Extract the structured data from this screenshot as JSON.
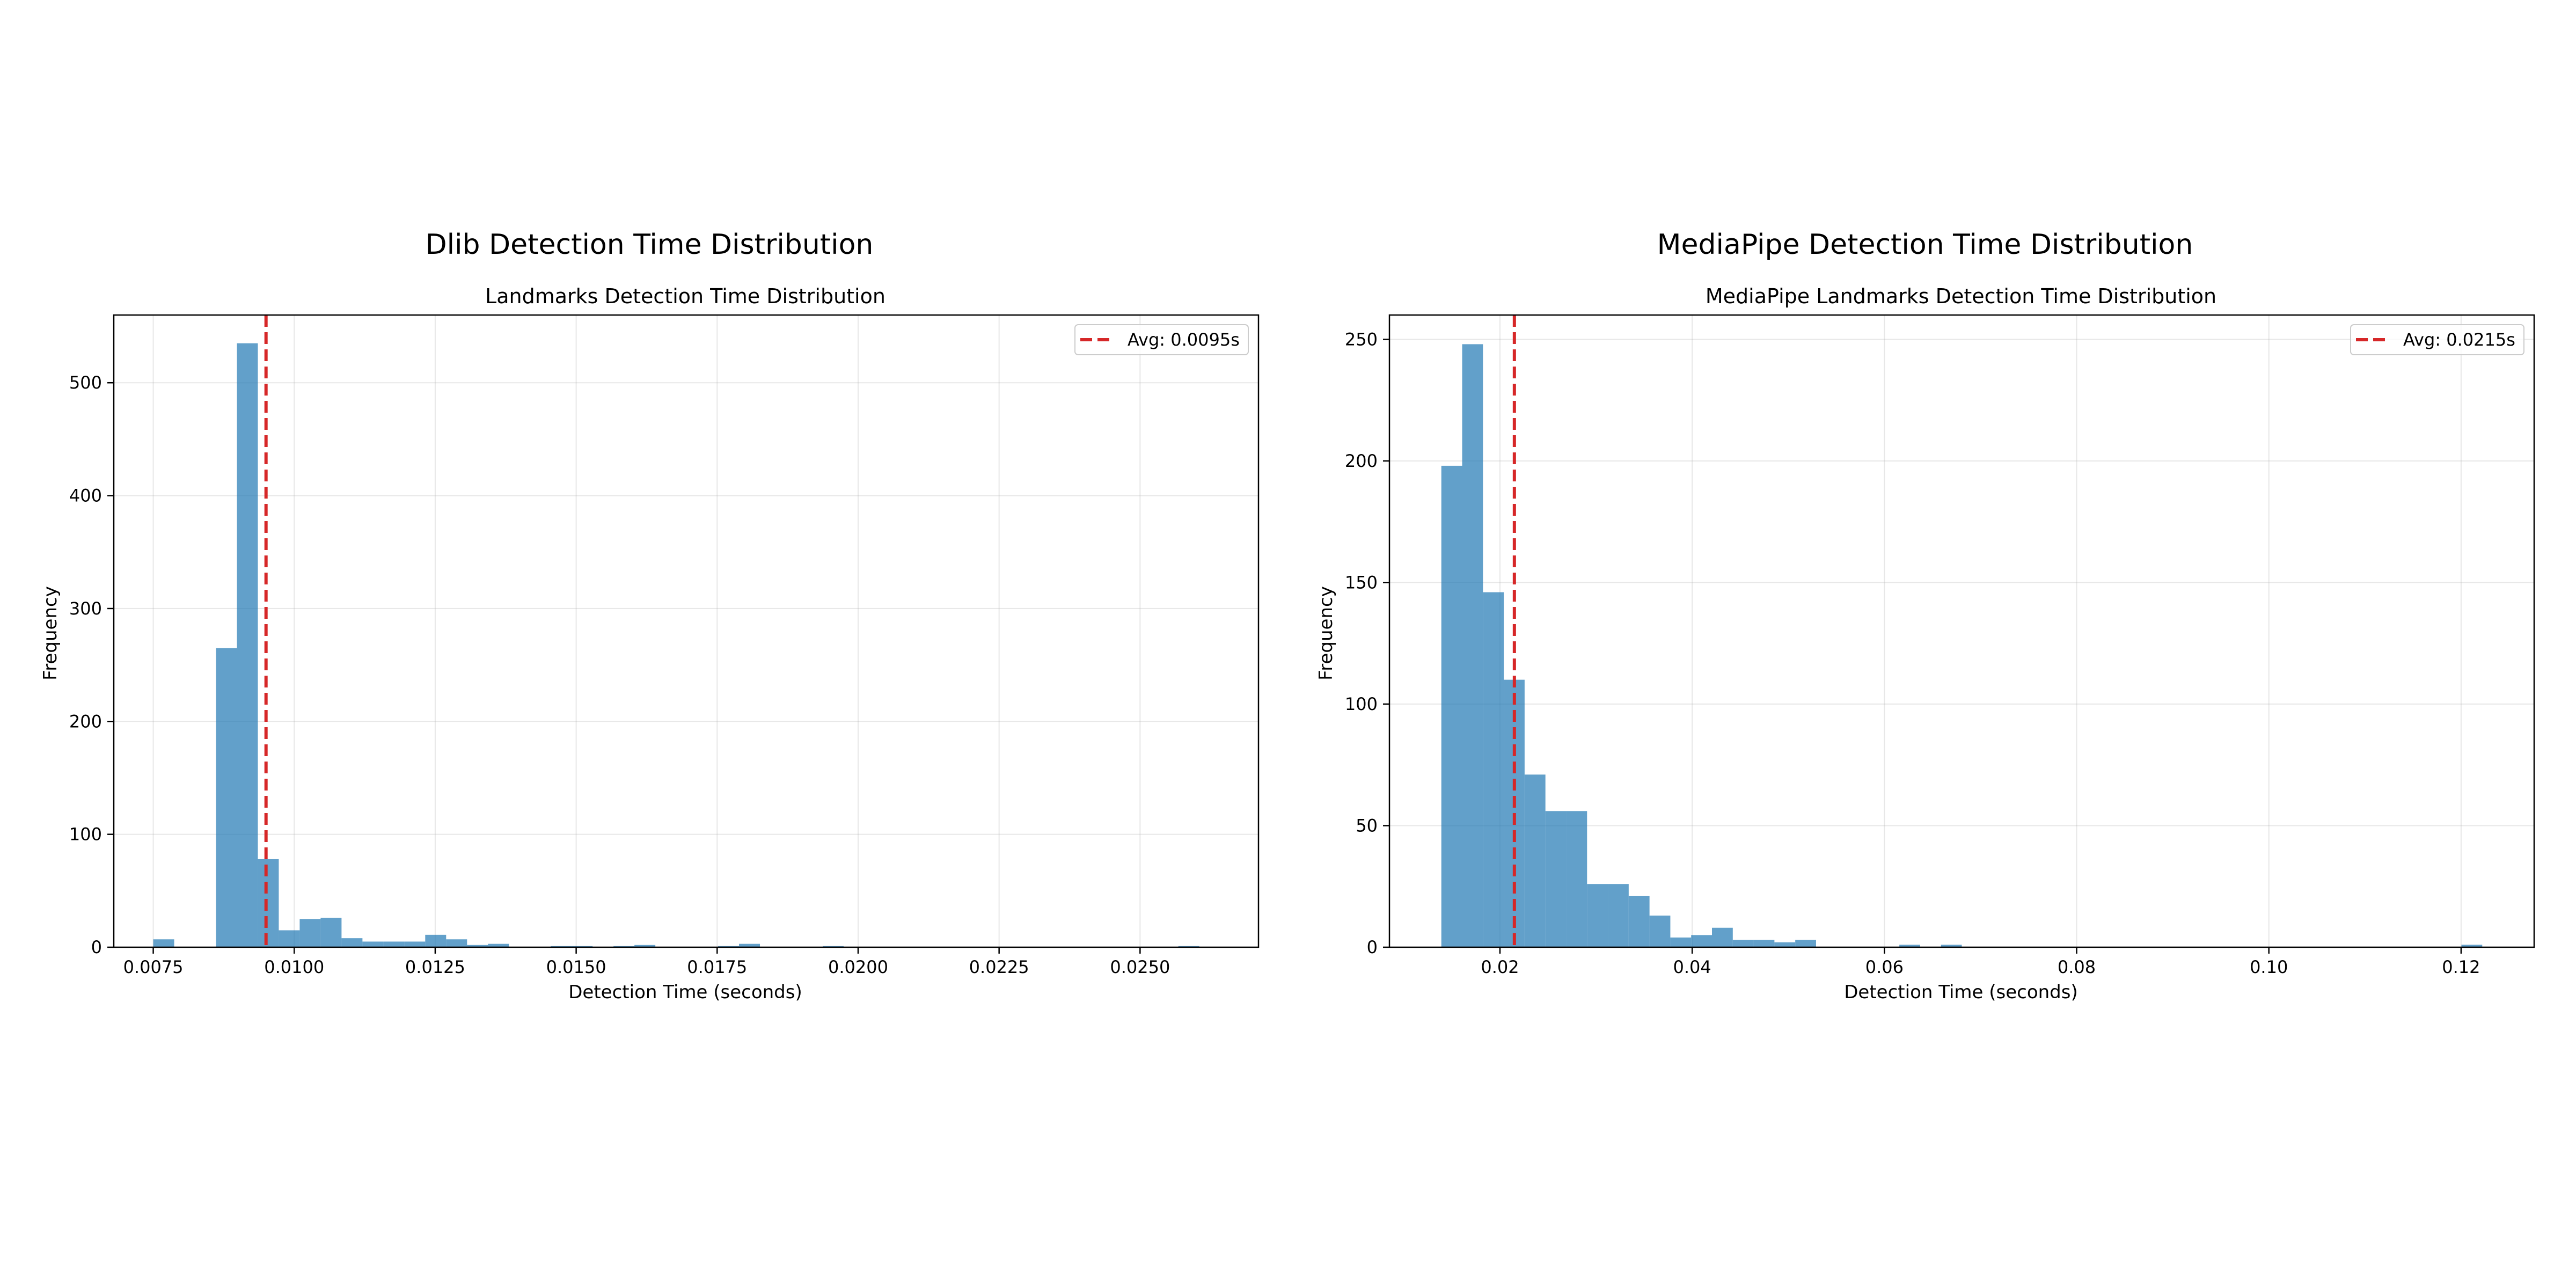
{
  "chart_data": [
    {
      "type": "bar",
      "suptitle": "Dlib Detection Time Distribution",
      "title": "Landmarks Detection Time Distribution",
      "xlabel": "Detection Time (seconds)",
      "ylabel": "Frequency",
      "xlim": [
        0.0068,
        0.0271
      ],
      "ylim": [
        0,
        560
      ],
      "xticks": [
        {
          "value": 0.0075,
          "label": "0.0075"
        },
        {
          "value": 0.01,
          "label": "0.0100"
        },
        {
          "value": 0.0125,
          "label": "0.0125"
        },
        {
          "value": 0.015,
          "label": "0.0150"
        },
        {
          "value": 0.0175,
          "label": "0.0175"
        },
        {
          "value": 0.02,
          "label": "0.0200"
        },
        {
          "value": 0.0225,
          "label": "0.0225"
        },
        {
          "value": 0.025,
          "label": "0.0250"
        }
      ],
      "yticks": [
        {
          "value": 0,
          "label": "0"
        },
        {
          "value": 100,
          "label": "100"
        },
        {
          "value": 200,
          "label": "200"
        },
        {
          "value": 300,
          "label": "300"
        },
        {
          "value": 400,
          "label": "400"
        },
        {
          "value": 500,
          "label": "500"
        }
      ],
      "bin_start": 0.0075,
      "bin_width": 0.000371,
      "values": [
        7,
        0,
        0,
        265,
        535,
        78,
        15,
        25,
        26,
        8,
        5,
        5,
        5,
        11,
        7,
        2,
        3,
        0,
        0,
        1,
        1,
        0,
        1,
        2,
        0,
        0,
        0,
        1,
        3,
        0,
        0,
        0,
        1,
        0,
        0,
        0,
        0,
        0,
        0,
        0,
        0,
        0,
        0,
        0,
        0,
        0,
        0,
        0,
        0,
        1
      ],
      "avg_line": {
        "value": 0.0095,
        "label": "Avg: 0.0095s",
        "color": "#d62728"
      },
      "bar_color": "#1f77b4",
      "grid": true,
      "legend_position": "top-right"
    },
    {
      "type": "bar",
      "suptitle": "MediaPipe Detection Time Distribution",
      "title": "MediaPipe Landmarks Detection Time Distribution",
      "xlabel": "Detection Time (seconds)",
      "ylabel": "Frequency",
      "xlim": [
        0.0085,
        0.1276
      ],
      "ylim": [
        0,
        260
      ],
      "xticks": [
        {
          "value": 0.02,
          "label": "0.02"
        },
        {
          "value": 0.04,
          "label": "0.04"
        },
        {
          "value": 0.06,
          "label": "0.06"
        },
        {
          "value": 0.08,
          "label": "0.08"
        },
        {
          "value": 0.1,
          "label": "0.10"
        },
        {
          "value": 0.12,
          "label": "0.12"
        }
      ],
      "yticks": [
        {
          "value": 0,
          "label": "0"
        },
        {
          "value": 50,
          "label": "50"
        },
        {
          "value": 100,
          "label": "100"
        },
        {
          "value": 150,
          "label": "150"
        },
        {
          "value": 200,
          "label": "200"
        },
        {
          "value": 250,
          "label": "250"
        }
      ],
      "bin_start": 0.0139,
      "bin_width": 0.002166,
      "values": [
        198,
        248,
        146,
        110,
        71,
        56,
        56,
        26,
        26,
        21,
        13,
        4,
        5,
        8,
        3,
        3,
        2,
        3,
        0,
        0,
        0,
        0,
        1,
        0,
        1,
        0,
        0,
        0,
        0,
        0,
        0,
        0,
        0,
        0,
        0,
        0,
        0,
        0,
        0,
        0,
        0,
        0,
        0,
        0,
        0,
        0,
        0,
        0,
        0,
        1
      ],
      "avg_line": {
        "value": 0.0215,
        "label": "Avg: 0.0215s",
        "color": "#d62728"
      },
      "bar_color": "#1f77b4",
      "grid": true,
      "legend_position": "top-right"
    }
  ]
}
